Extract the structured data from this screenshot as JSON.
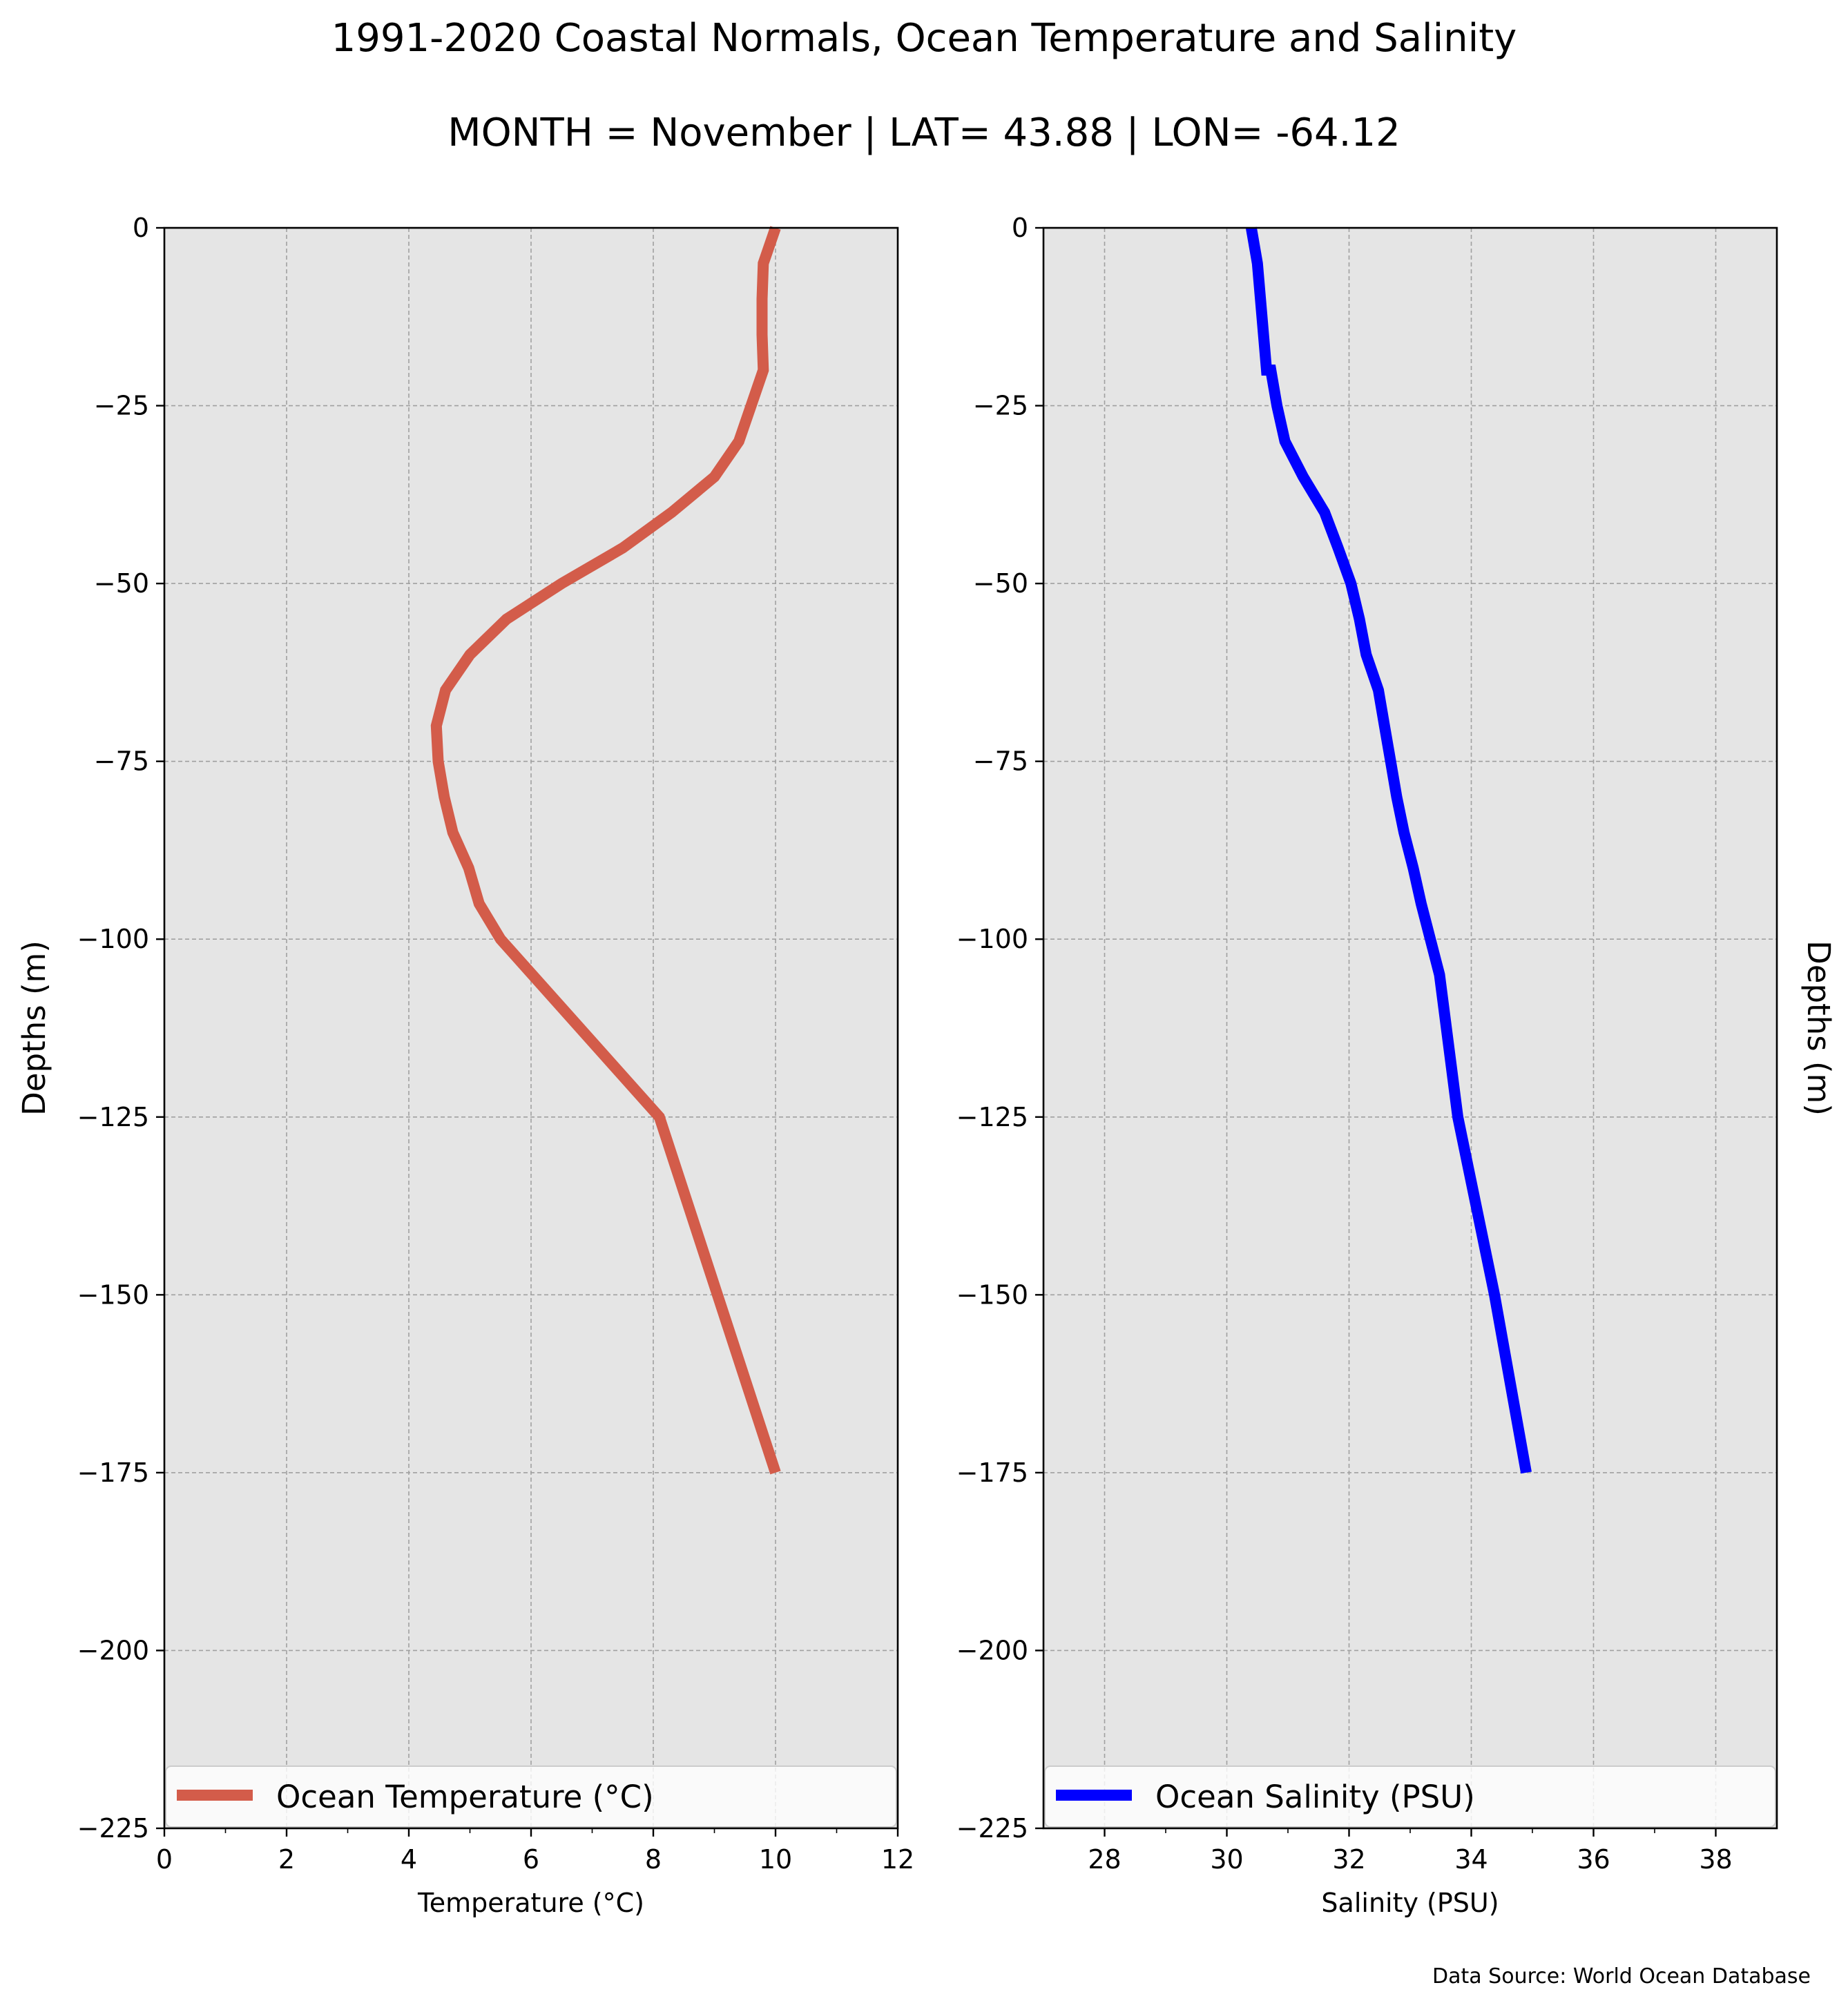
{
  "title": "1991-2020 Coastal Normals, Ocean Temperature and Salinity",
  "subtitle": "MONTH = November | LAT= 43.88 | LON= -64.12",
  "source_note": "Data Source: World Ocean Database",
  "colors": {
    "temperature": "#d35c4a",
    "salinity": "#0000ff",
    "plot_bg": "#e5e5e5",
    "grid": "#a0a0a0"
  },
  "chart_data": [
    {
      "type": "line",
      "xlabel": "Temperature ($^\\circ$C)",
      "xlabel_display": "Temperature (°C)",
      "ylabel": "Depths (m)",
      "xlim": [
        0,
        12
      ],
      "ylim": [
        -225,
        0
      ],
      "xticks": [
        0,
        2,
        4,
        6,
        8,
        10,
        12
      ],
      "yticks": [
        0,
        -25,
        -50,
        -75,
        -100,
        -125,
        -150,
        -175,
        -200,
        -225
      ],
      "xtick_labels": [
        "0",
        "2",
        "4",
        "6",
        "8",
        "10",
        "12"
      ],
      "ytick_labels": [
        "0",
        "−25",
        "−50",
        "−75",
        "−100",
        "−125",
        "−150",
        "−175",
        "−200",
        "−225"
      ],
      "grid": true,
      "legend_position": "bottom",
      "series": [
        {
          "name": "Ocean Temperature (°C)",
          "color": "#d35c4a",
          "x": [
            10.0,
            9.8,
            9.78,
            9.78,
            9.8,
            9.8,
            9.8,
            9.6,
            9.4,
            9.0,
            8.3,
            7.5,
            6.5,
            5.6,
            5.0,
            4.6,
            4.45,
            4.48,
            4.58,
            4.72,
            4.98,
            5.15,
            5.5,
            8.1,
            9.05,
            10.0
          ],
          "y": [
            0,
            -5,
            -10,
            -15,
            -20,
            -20,
            -20,
            -25,
            -30,
            -35,
            -40,
            -45,
            -50,
            -55,
            -60,
            -65,
            -70,
            -75,
            -80,
            -85,
            -90,
            -95,
            -100,
            -125,
            -150,
            -175
          ]
        }
      ]
    },
    {
      "type": "line",
      "xlabel": "Salinity (PSU)",
      "ylabel": "Depths (m)",
      "ylabel_side": "right",
      "xlim": [
        27,
        39
      ],
      "ylim": [
        -225,
        0
      ],
      "xticks": [
        28,
        30,
        32,
        34,
        36,
        38
      ],
      "yticks": [
        0,
        -25,
        -50,
        -75,
        -100,
        -125,
        -150,
        -175,
        -200,
        -225
      ],
      "xtick_labels": [
        "28",
        "30",
        "32",
        "34",
        "36",
        "38"
      ],
      "ytick_labels": [
        "0",
        "−25",
        "−50",
        "−75",
        "−100",
        "−125",
        "−150",
        "−175",
        "−200",
        "−225"
      ],
      "grid": true,
      "legend_position": "bottom",
      "series": [
        {
          "name": "Ocean Salinity (PSU)",
          "color": "#0000ff",
          "x": [
            30.4,
            30.5,
            30.55,
            30.6,
            30.65,
            30.72,
            30.82,
            30.95,
            31.25,
            31.6,
            31.82,
            32.03,
            32.17,
            32.28,
            32.48,
            32.58,
            32.68,
            32.78,
            32.9,
            33.05,
            33.18,
            33.33,
            33.48,
            33.78,
            34.38,
            34.9
          ],
          "y": [
            0,
            -5,
            -10,
            -15,
            -20,
            -20,
            -25,
            -30,
            -35,
            -40,
            -45,
            -50,
            -55,
            -60,
            -65,
            -70,
            -75,
            -80,
            -85,
            -90,
            -95,
            -100,
            -105,
            -125,
            -150,
            -175
          ]
        }
      ]
    }
  ]
}
